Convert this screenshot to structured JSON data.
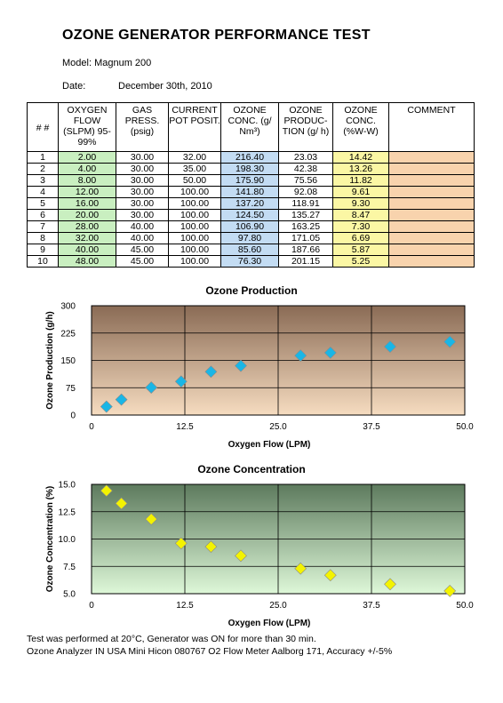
{
  "header": {
    "title": "OZONE GENERATOR PERFORMANCE TEST",
    "model": "Model: Magnum 200",
    "date_label": "Date:",
    "date_value": "December 30th, 2010"
  },
  "table": {
    "headers": {
      "idx": "# #",
      "flow": "OXYGEN FLOW (SLPM) 95-99%",
      "gas": "GAS PRESS. (psig)",
      "pot": "CURRENT POT POSIT.",
      "conc": "OZONE CONC. (g/ Nm³)",
      "prod": "OZONE PRODUC- TION (g/ h)",
      "pct": "OZONE CONC. (%W-W)",
      "comment": "COMMENT"
    },
    "rows": [
      {
        "n": "1",
        "flow": "2.00",
        "gas": "30.00",
        "pot": "32.00",
        "conc": "216.40",
        "prod": "23.03",
        "pct": "14.42"
      },
      {
        "n": "2",
        "flow": "4.00",
        "gas": "30.00",
        "pot": "35.00",
        "conc": "198.30",
        "prod": "42.38",
        "pct": "13.26"
      },
      {
        "n": "3",
        "flow": "8.00",
        "gas": "30.00",
        "pot": "50.00",
        "conc": "175.90",
        "prod": "75.56",
        "pct": "11.82"
      },
      {
        "n": "4",
        "flow": "12.00",
        "gas": "30.00",
        "pot": "100.00",
        "conc": "141.80",
        "prod": "92.08",
        "pct": "9.61"
      },
      {
        "n": "5",
        "flow": "16.00",
        "gas": "30.00",
        "pot": "100.00",
        "conc": "137.20",
        "prod": "118.91",
        "pct": "9.30"
      },
      {
        "n": "6",
        "flow": "20.00",
        "gas": "30.00",
        "pot": "100.00",
        "conc": "124.50",
        "prod": "135.27",
        "pct": "8.47"
      },
      {
        "n": "7",
        "flow": "28.00",
        "gas": "40.00",
        "pot": "100.00",
        "conc": "106.90",
        "prod": "163.25",
        "pct": "7.30"
      },
      {
        "n": "8",
        "flow": "32.00",
        "gas": "40.00",
        "pot": "100.00",
        "conc": "97.80",
        "prod": "171.05",
        "pct": "6.69"
      },
      {
        "n": "9",
        "flow": "40.00",
        "gas": "45.00",
        "pot": "100.00",
        "conc": "85.60",
        "prod": "187.66",
        "pct": "5.87"
      },
      {
        "n": "10",
        "flow": "48.00",
        "gas": "45.00",
        "pot": "100.00",
        "conc": "76.30",
        "prod": "201.15",
        "pct": "5.25"
      }
    ]
  },
  "chart_data": [
    {
      "type": "scatter",
      "title": "Ozone Production",
      "xlabel": "Oxygen Flow (LPM)",
      "ylabel": "Ozone Production (g/h)",
      "xlim": [
        0,
        50
      ],
      "ylim": [
        0,
        300
      ],
      "xticks": [
        "0",
        "12.5",
        "25.0",
        "37.5",
        "50.0"
      ],
      "yticks": [
        "0",
        "75",
        "150",
        "225",
        "300"
      ],
      "grid": true,
      "marker_color": "#19b6e6",
      "background_top": "#8a6b55",
      "background_bottom": "#f6dcc0",
      "x": [
        2,
        4,
        8,
        12,
        16,
        20,
        28,
        32,
        40,
        48
      ],
      "y": [
        23.03,
        42.38,
        75.56,
        92.08,
        118.91,
        135.27,
        163.25,
        171.05,
        187.66,
        201.15
      ]
    },
    {
      "type": "scatter",
      "title": "Ozone Concentration",
      "xlabel": "Oxygen Flow (LPM)",
      "ylabel": "Ozone Concentration (%)",
      "xlim": [
        0,
        50
      ],
      "ylim": [
        5,
        15
      ],
      "xticks": [
        "0",
        "12.5",
        "25.0",
        "37.5",
        "50.0"
      ],
      "yticks": [
        "5.0",
        "7.5",
        "10.0",
        "12.5",
        "15.0"
      ],
      "grid": true,
      "marker_color": "#f3f300",
      "background_top": "#5d7a5d",
      "background_bottom": "#def8d8",
      "x": [
        2,
        4,
        8,
        12,
        16,
        20,
        28,
        32,
        40,
        48
      ],
      "y": [
        14.42,
        13.26,
        11.82,
        9.61,
        9.3,
        8.47,
        7.3,
        6.69,
        5.87,
        5.25
      ]
    }
  ],
  "footer": {
    "line1": "Test was performed at 20°C, Generator was ON for more than 30 min.",
    "line2": "Ozone Analyzer IN USA Mini Hicon 080767 O2 Flow Meter Aalborg 171, Accuracy +/-5%"
  }
}
